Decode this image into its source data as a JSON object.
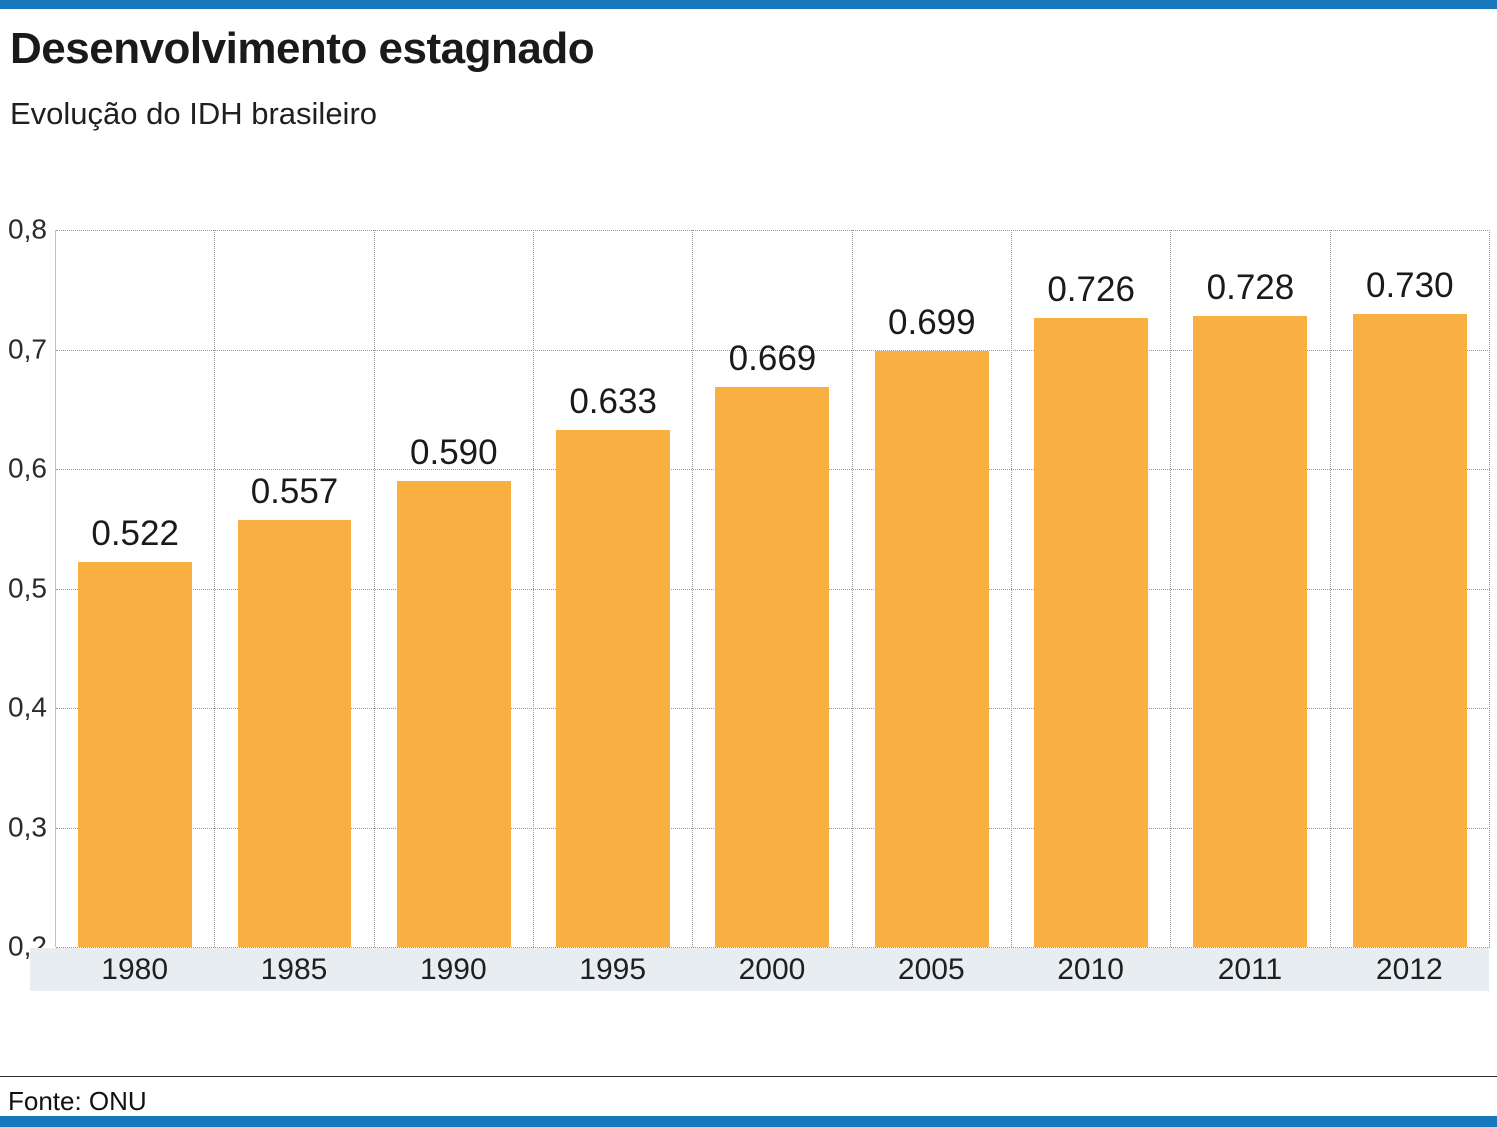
{
  "title": "Desenvolvimento estagnado",
  "subtitle": "Evolução do IDH brasileiro",
  "source": "Fonte: ONU",
  "colors": {
    "accent_blue": "#1878BE",
    "bar_orange": "#F9AF42",
    "axis_band": "#E8EDF2",
    "gridline": "#9a9a9a"
  },
  "chart_data": {
    "type": "bar",
    "title": "Desenvolvimento estagnado",
    "subtitle": "Evolução do IDH brasileiro",
    "categories": [
      "1980",
      "1985",
      "1990",
      "1995",
      "2000",
      "2005",
      "2010",
      "2011",
      "2012"
    ],
    "values": [
      0.522,
      0.557,
      0.59,
      0.633,
      0.669,
      0.699,
      0.726,
      0.728,
      0.73
    ],
    "value_labels": [
      "0.522",
      "0.557",
      "0.590",
      "0.633",
      "0.669",
      "0.699",
      "0.726",
      "0.728",
      "0.730"
    ],
    "xlabel": "",
    "ylabel": "",
    "ylim": [
      0.2,
      0.8
    ],
    "yticks": [
      "0,8",
      "0,7",
      "0,6",
      "0,5",
      "0,4",
      "0,3",
      "0,2"
    ],
    "grid": "dotted horizontal and vertical column separators",
    "legend": "none",
    "source": "Fonte: ONU"
  }
}
